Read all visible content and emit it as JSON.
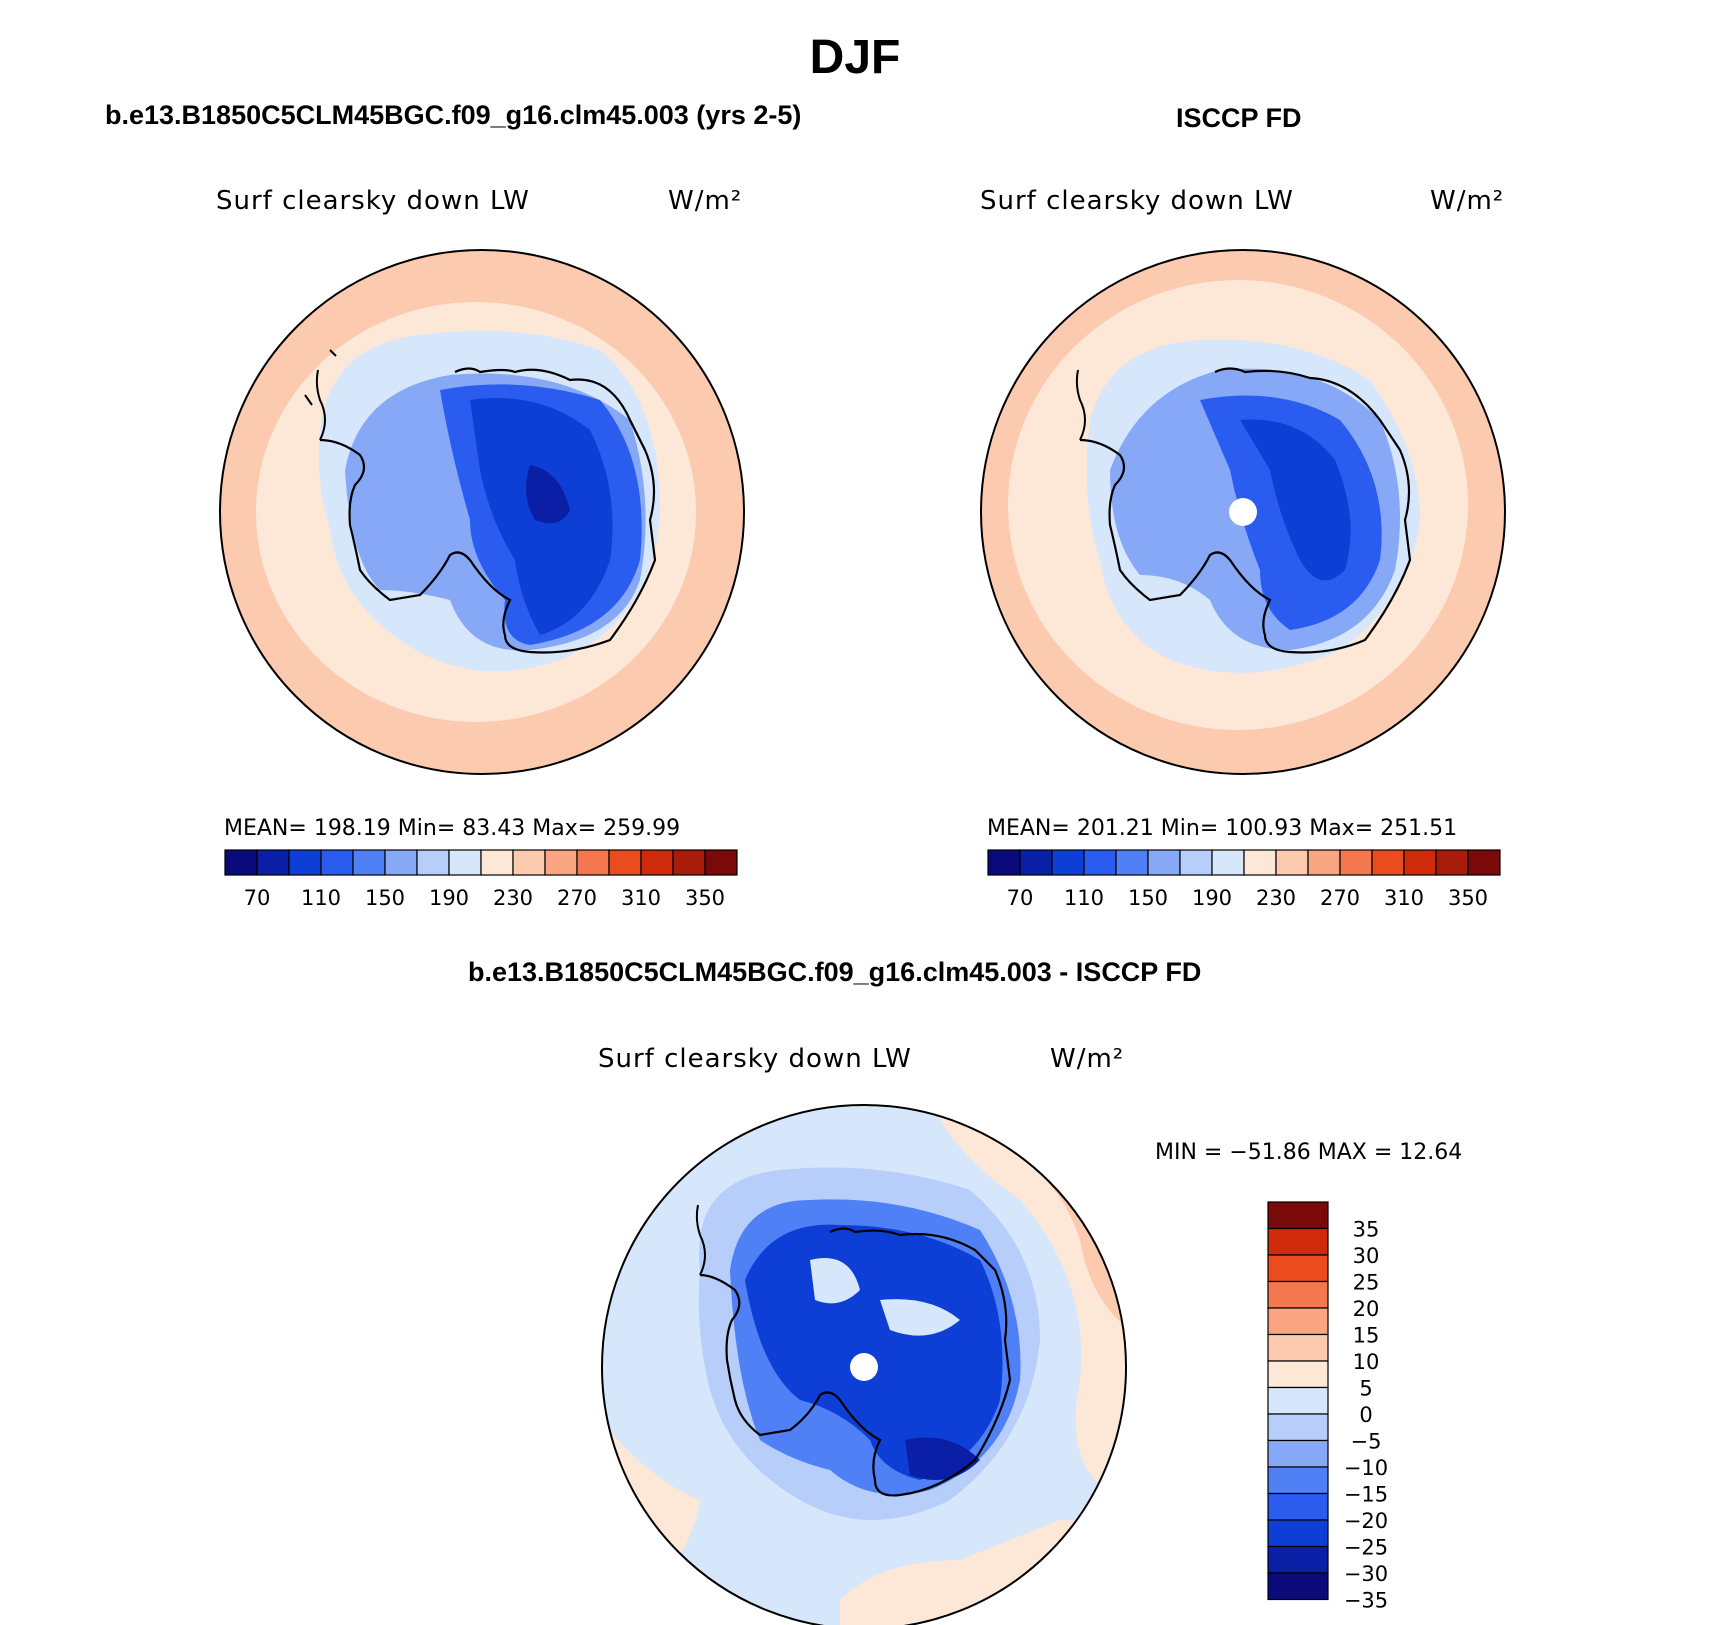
{
  "title": "DJF",
  "colors": {
    "abs_scale": [
      "#0a0a7a",
      "#0a1fa6",
      "#0d3fd6",
      "#2a5cf0",
      "#4f80f5",
      "#87a8f7",
      "#b7cdfa",
      "#d6e6fb",
      "#fde8d8",
      "#fccaaf",
      "#f9a582",
      "#f5774f",
      "#ea4b1f",
      "#cf2a0c",
      "#a81c0c",
      "#7a0a0a"
    ],
    "diff_scale": [
      "#0a0a7a",
      "#0a1fa6",
      "#0d3fd6",
      "#2a5cf0",
      "#4f80f5",
      "#87a8f7",
      "#b7cdfa",
      "#d6e6fb",
      "#fde8d8",
      "#fccaaf",
      "#f9a582",
      "#f5774f",
      "#ea4b1f",
      "#cf2a0c",
      "#7a0a0a"
    ]
  },
  "panels": [
    {
      "title": "b.e13.B1850C5CLM45BGC.f09_g16.clm45.003 (yrs 2-5)",
      "variable": "Surf clearsky down LW",
      "units": "W/m²",
      "stats": "MEAN=  198.19   Min=   83.43   Max=  259.99"
    },
    {
      "title": "ISCCP FD",
      "variable": "Surf clearsky down LW",
      "units": "W/m²",
      "stats": "MEAN=  201.21   Min=  100.93   Max=  251.51"
    },
    {
      "title": "b.e13.B1850C5CLM45BGC.f09_g16.clm45.003 - ISCCP FD",
      "variable": "Surf clearsky down LW",
      "units": "W/m²",
      "stats": "MIN = −51.86 MAX =   12.64"
    }
  ],
  "chart_data": [
    {
      "type": "heatmap",
      "projection": "south-polar-stereographic",
      "title": "b.e13.B1850C5CLM45BGC.f09_g16.clm45.003 (yrs 2-5)",
      "variable": "Surf clearsky down LW",
      "units": "W/m²",
      "mean": 198.19,
      "min": 83.43,
      "max": 259.99,
      "colorbar_ticks": [
        "70",
        "110",
        "150",
        "190",
        "230",
        "270",
        "310",
        "350"
      ],
      "levels": [
        70,
        90,
        110,
        130,
        150,
        170,
        190,
        210,
        230,
        250,
        270,
        290,
        310,
        330,
        350
      ]
    },
    {
      "type": "heatmap",
      "projection": "south-polar-stereographic",
      "title": "ISCCP FD",
      "variable": "Surf clearsky down LW",
      "units": "W/m²",
      "mean": 201.21,
      "min": 100.93,
      "max": 251.51,
      "colorbar_ticks": [
        "70",
        "110",
        "150",
        "190",
        "230",
        "270",
        "310",
        "350"
      ],
      "levels": [
        70,
        90,
        110,
        130,
        150,
        170,
        190,
        210,
        230,
        250,
        270,
        290,
        310,
        330,
        350
      ]
    },
    {
      "type": "heatmap",
      "projection": "south-polar-stereographic",
      "title": "b.e13.B1850C5CLM45BGC.f09_g16.clm45.003 - ISCCP FD",
      "variable": "Surf clearsky down LW",
      "units": "W/m²",
      "min": -51.86,
      "max": 12.64,
      "colorbar_ticks": [
        "35",
        "30",
        "25",
        "20",
        "15",
        "10",
        "5",
        "0",
        "−5",
        "−10",
        "−15",
        "−20",
        "−25",
        "−30",
        "−35"
      ],
      "levels": [
        -35,
        -30,
        -25,
        -20,
        -15,
        -10,
        -5,
        0,
        5,
        10,
        15,
        20,
        25,
        30,
        35
      ]
    }
  ]
}
